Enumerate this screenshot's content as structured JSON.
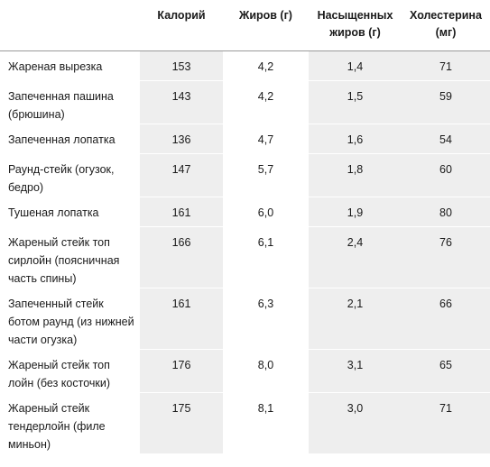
{
  "table": {
    "headers": {
      "name": "",
      "calories": "Калорий",
      "fat": "Жиров (г)",
      "saturated_fat": "Насыщенных жиров (г)",
      "cholesterol": "Холестерина (мг)"
    },
    "rows": [
      {
        "name": "Жареная вырезка",
        "calories": "153",
        "fat": "4,2",
        "saturated_fat": "1,4",
        "cholesterol": "71"
      },
      {
        "name": "Запеченная пашина (брюшина)",
        "calories": "143",
        "fat": "4,2",
        "saturated_fat": "1,5",
        "cholesterol": "59"
      },
      {
        "name": "Запеченная лопатка",
        "calories": "136",
        "fat": "4,7",
        "saturated_fat": "1,6",
        "cholesterol": "54"
      },
      {
        "name": "Раунд-стейк (огузок, бедро)",
        "calories": "147",
        "fat": "5,7",
        "saturated_fat": "1,8",
        "cholesterol": "60"
      },
      {
        "name": "Тушеная лопатка",
        "calories": "161",
        "fat": "6,0",
        "saturated_fat": "1,9",
        "cholesterol": "80"
      },
      {
        "name": "Жареный стейк топ сирлойн (поясничная часть спины)",
        "calories": "166",
        "fat": "6,1",
        "saturated_fat": "2,4",
        "cholesterol": "76"
      },
      {
        "name": "Запеченный стейк ботом раунд (из нижней части огузка)",
        "calories": "161",
        "fat": "6,3",
        "saturated_fat": "2,1",
        "cholesterol": "66"
      },
      {
        "name": "Жареный стейк топ лойн (без косточки)",
        "calories": "176",
        "fat": "8,0",
        "saturated_fat": "3,1",
        "cholesterol": "65"
      },
      {
        "name": "Жареный стейк тендерлойн (филе миньон)",
        "calories": "175",
        "fat": "8,1",
        "saturated_fat": "3,0",
        "cholesterol": "71"
      }
    ]
  },
  "colors": {
    "shade": "#eeeeee",
    "text": "#1a1a1a"
  }
}
